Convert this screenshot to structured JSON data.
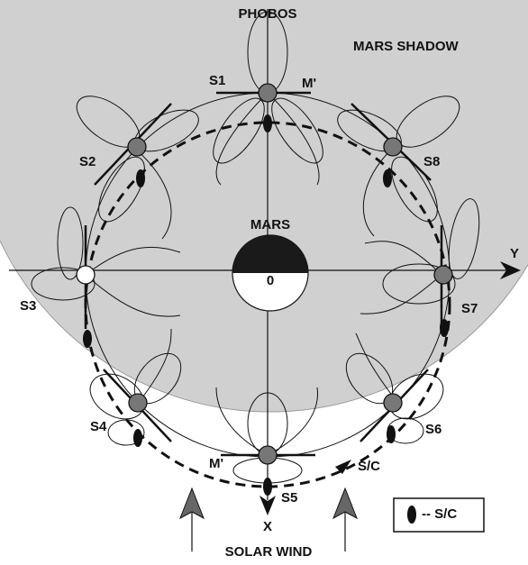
{
  "shadow_label": "MARS SHADOW",
  "phobos_label": "PHOBOS",
  "mars_label": "MARS",
  "origin_label": "0",
  "axes": {
    "x": "X",
    "y": "Y"
  },
  "stations": [
    "S1",
    "S2",
    "S3",
    "S4",
    "S5",
    "S6",
    "S7",
    "S8"
  ],
  "m_prime": [
    "M'",
    "M'"
  ],
  "sc_label": "S/C",
  "solar_wind": "SOLAR WIND",
  "legend": "-- S/C"
}
